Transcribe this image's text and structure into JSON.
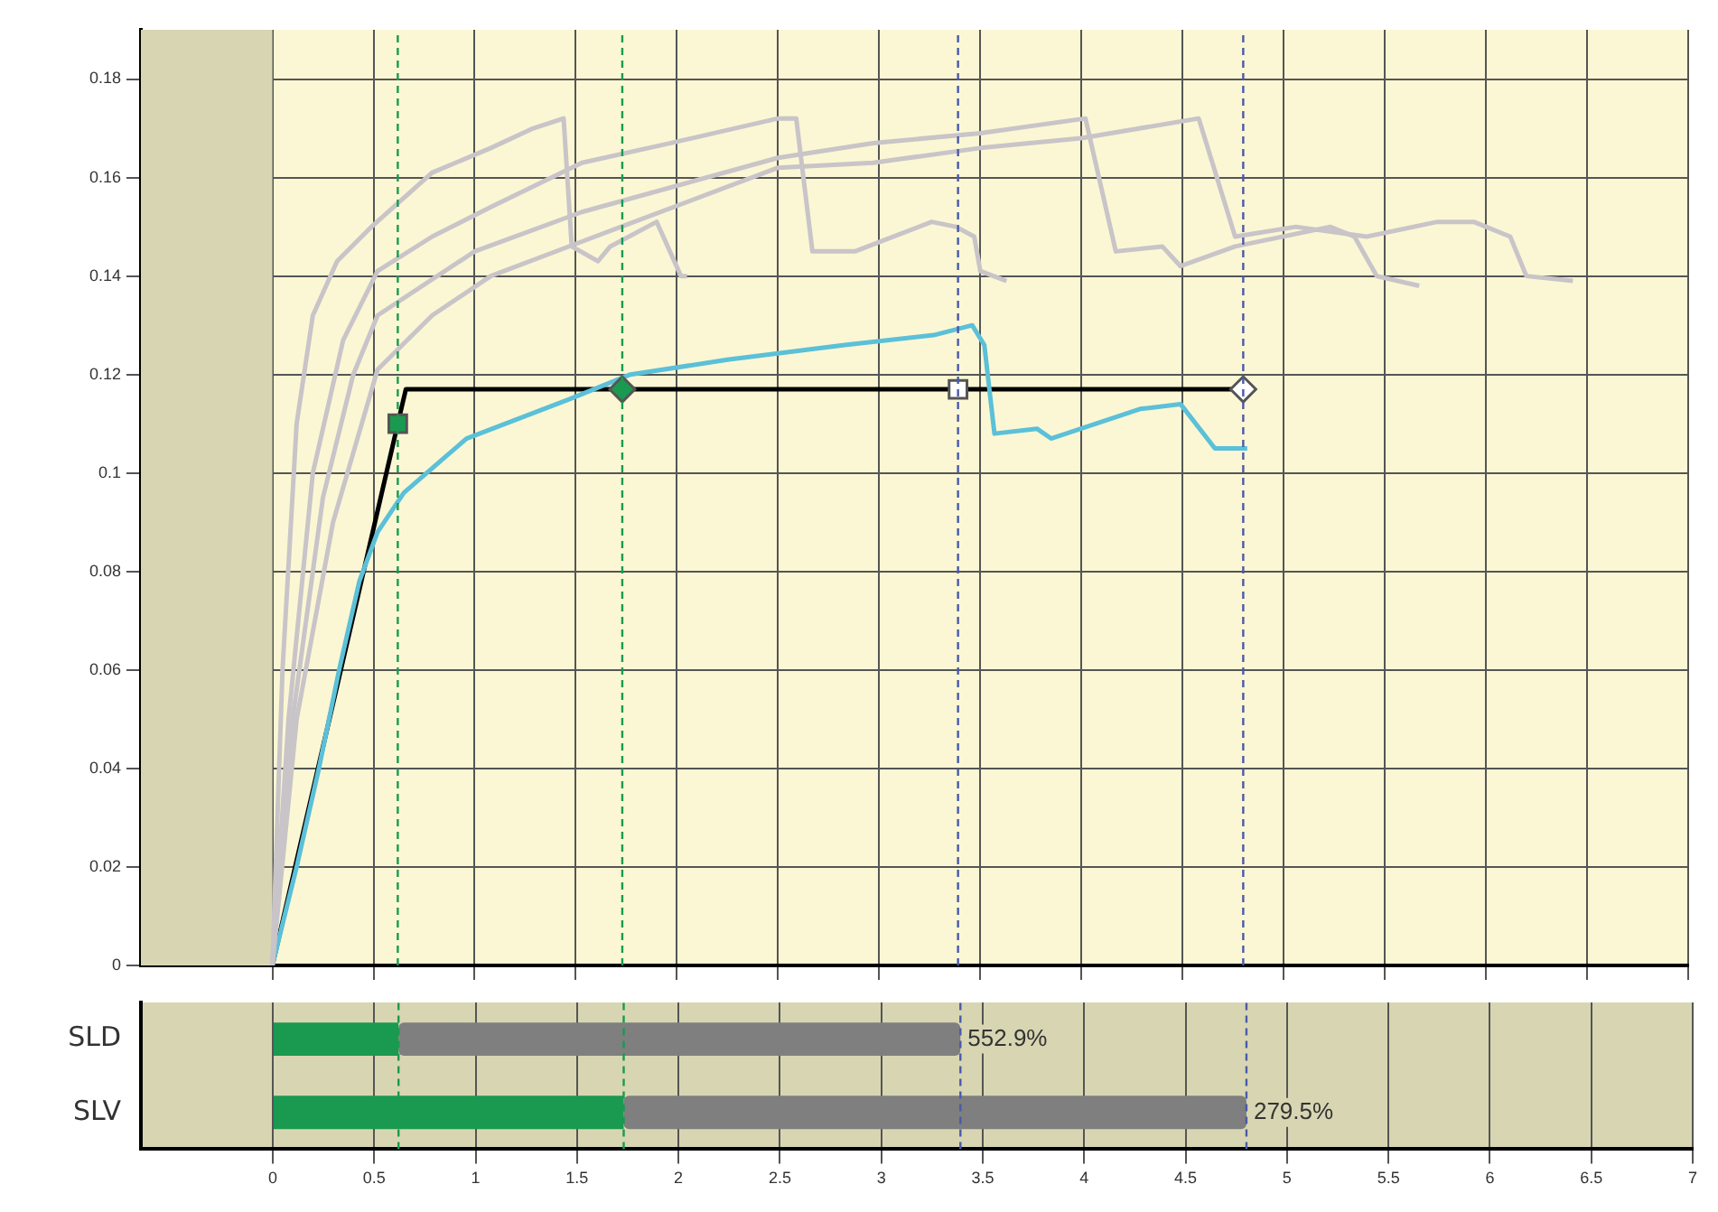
{
  "chart_data": [
    {
      "type": "line",
      "xlim": [
        -0.65,
        7
      ],
      "xticks": [
        0,
        0.5,
        1,
        1.5,
        2,
        2.5,
        3,
        3.5,
        4,
        4.5,
        5,
        5.5,
        6,
        6.5,
        7
      ],
      "ylim": [
        0,
        0.19
      ],
      "yticks": [
        0,
        0.02,
        0.04,
        0.06,
        0.08,
        0.1,
        0.12,
        0.14,
        0.16,
        0.18
      ],
      "grid": true,
      "legend": false,
      "tick_labels": "y",
      "bands": [
        {
          "axis": "x",
          "from": -0.65,
          "to": 0,
          "color": "#d8d6b2"
        }
      ],
      "ref_lines": [
        {
          "axis": "x",
          "value": 0.62,
          "color": "#1a9a50",
          "line_style": "dashed"
        },
        {
          "axis": "x",
          "value": 1.73,
          "color": "#1a9a50",
          "line_style": "dashed"
        },
        {
          "axis": "x",
          "value": 3.39,
          "color": "#4a5aa8",
          "line_style": "dashed"
        },
        {
          "axis": "x",
          "value": 4.8,
          "color": "#4a5aa8",
          "line_style": "dashed"
        }
      ],
      "series": [
        {
          "color": "#c8c4c8",
          "x": [
            0,
            0.05,
            0.12,
            0.2,
            0.32,
            0.49,
            0.79,
            1.08,
            1.29,
            1.44,
            1.48,
            1.61,
            1.67,
            1.9,
            2.02,
            2.05
          ],
          "values": [
            0,
            0.06,
            0.11,
            0.132,
            0.143,
            0.15,
            0.161,
            0.166,
            0.17,
            0.172,
            0.146,
            0.143,
            0.146,
            0.151,
            0.14,
            0.14
          ]
        },
        {
          "color": "#c8c4c8",
          "x": [
            0,
            0.08,
            0.2,
            0.35,
            0.52,
            0.79,
            1.08,
            1.53,
            1.97,
            2.5,
            2.59,
            2.67,
            2.88,
            3.26,
            3.38,
            3.47,
            3.5,
            3.63
          ],
          "values": [
            0,
            0.05,
            0.1,
            0.127,
            0.141,
            0.148,
            0.154,
            0.163,
            0.167,
            0.172,
            0.172,
            0.145,
            0.145,
            0.151,
            0.15,
            0.148,
            0.141,
            0.139
          ]
        },
        {
          "color": "#c8c4c8",
          "x": [
            0,
            0.1,
            0.25,
            0.4,
            0.52,
            1.0,
            1.53,
            2.5,
            2.97,
            3.5,
            4.02,
            4.17,
            4.4,
            4.49,
            4.76,
            5.23,
            5.35,
            5.46,
            5.67
          ],
          "values": [
            0,
            0.05,
            0.095,
            0.12,
            0.132,
            0.145,
            0.153,
            0.164,
            0.167,
            0.169,
            0.172,
            0.145,
            0.146,
            0.142,
            0.146,
            0.15,
            0.148,
            0.14,
            0.138
          ]
        },
        {
          "color": "#c8c4c8",
          "x": [
            0,
            0.12,
            0.3,
            0.52,
            0.79,
            1.08,
            1.53,
            2.5,
            2.97,
            3.5,
            4.0,
            4.58,
            4.76,
            5.06,
            5.41,
            5.76,
            5.94,
            6.12,
            6.2,
            6.43
          ],
          "values": [
            0,
            0.05,
            0.09,
            0.121,
            0.132,
            0.14,
            0.147,
            0.162,
            0.163,
            0.166,
            0.168,
            0.172,
            0.148,
            0.15,
            0.148,
            0.151,
            0.151,
            0.148,
            0.14,
            0.139
          ]
        },
        {
          "color": "#5bc0d8",
          "x": [
            0,
            0.12,
            0.23,
            0.33,
            0.43,
            0.52,
            0.65,
            0.96,
            1.47,
            1.77,
            2.25,
            2.83,
            3.27,
            3.46,
            3.52,
            3.57,
            3.78,
            3.85,
            4.29,
            4.49,
            4.66,
            4.82
          ],
          "values": [
            0,
            0.02,
            0.04,
            0.06,
            0.078,
            0.088,
            0.096,
            0.107,
            0.115,
            0.12,
            0.123,
            0.126,
            0.128,
            0.13,
            0.126,
            0.108,
            0.109,
            0.107,
            0.113,
            0.114,
            0.105,
            0.105
          ]
        },
        {
          "color": "#000000",
          "x": [
            0,
            0.62,
            0.66,
            4.8
          ],
          "values": [
            0,
            0.11,
            0.117,
            0.117
          ]
        },
        {
          "type": "scatter",
          "marker": "square",
          "colors": [
            "#1a9a50",
            "#ffffff"
          ],
          "x": [
            0.62,
            3.39
          ],
          "values": [
            0.11,
            0.117
          ]
        },
        {
          "type": "scatter",
          "marker": "diamond",
          "colors": [
            "#1a9a50",
            "#ffffff"
          ],
          "x": [
            1.73,
            4.8
          ],
          "values": [
            0.117,
            0.117
          ]
        }
      ]
    },
    {
      "type": "bar",
      "orientation": "horizontal",
      "stacked": true,
      "categories": [
        "SLD",
        "SLV"
      ],
      "xlim": [
        -0.65,
        7
      ],
      "xticks": [
        0,
        0.5,
        1,
        1.5,
        2,
        2.5,
        3,
        3.5,
        4,
        4.5,
        5,
        5.5,
        6,
        6.5,
        7
      ],
      "grid": "x",
      "legend": false,
      "series": [
        {
          "color": "#1a9a50",
          "values": [
            0.62,
            1.73
          ]
        },
        {
          "color": "#7f7f7f",
          "values": [
            2.77,
            3.07
          ]
        }
      ],
      "annotations": [
        {
          "text": "552.9%",
          "x": 3.39,
          "y": "SLD"
        },
        {
          "text": "279.5%",
          "x": 4.8,
          "y": "SLV"
        }
      ],
      "ref_lines": [
        {
          "axis": "x",
          "value": 0.62,
          "color": "#1a9a50",
          "line_style": "dashed"
        },
        {
          "axis": "x",
          "value": 1.73,
          "color": "#1a9a50",
          "line_style": "dashed"
        },
        {
          "axis": "x",
          "value": 3.39,
          "color": "#4a5aa8",
          "line_style": "dashed"
        },
        {
          "axis": "x",
          "value": 4.8,
          "color": "#4a5aa8",
          "line_style": "dashed"
        }
      ]
    }
  ]
}
